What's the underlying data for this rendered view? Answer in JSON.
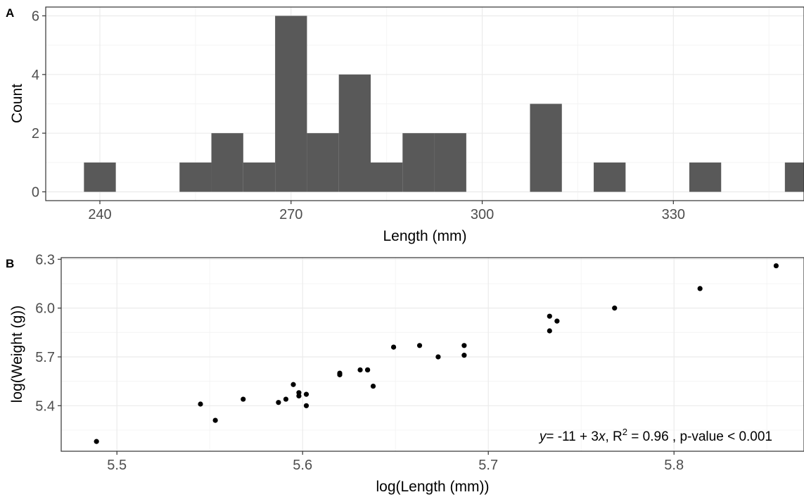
{
  "chart_data": [
    {
      "panel": "A",
      "type": "bar",
      "subtype": "histogram",
      "xlabel": "Length (mm)",
      "ylabel": "Count",
      "xticks": [
        240,
        270,
        300,
        330
      ],
      "yticks": [
        0,
        2,
        4,
        6
      ],
      "xlim": [
        231.5,
        350.5
      ],
      "ylim": [
        -0.3,
        6.3
      ],
      "bin_width": 5,
      "bins": [
        {
          "center": 240,
          "count": 1
        },
        {
          "center": 245,
          "count": 0
        },
        {
          "center": 250,
          "count": 0
        },
        {
          "center": 255,
          "count": 1
        },
        {
          "center": 260,
          "count": 2
        },
        {
          "center": 265,
          "count": 1
        },
        {
          "center": 270,
          "count": 6
        },
        {
          "center": 275,
          "count": 2
        },
        {
          "center": 280,
          "count": 4
        },
        {
          "center": 285,
          "count": 1
        },
        {
          "center": 290,
          "count": 2
        },
        {
          "center": 295,
          "count": 2
        },
        {
          "center": 300,
          "count": 0
        },
        {
          "center": 305,
          "count": 0
        },
        {
          "center": 310,
          "count": 3
        },
        {
          "center": 315,
          "count": 0
        },
        {
          "center": 320,
          "count": 1
        },
        {
          "center": 325,
          "count": 0
        },
        {
          "center": 330,
          "count": 0
        },
        {
          "center": 335,
          "count": 1
        },
        {
          "center": 340,
          "count": 0
        },
        {
          "center": 345,
          "count": 0
        },
        {
          "center": 350,
          "count": 1
        }
      ],
      "bar_color": "#595959",
      "grid": true
    },
    {
      "panel": "B",
      "type": "scatter",
      "xlabel": "log(Length (mm))",
      "ylabel": "log(Weight (g))",
      "xticks": [
        "5.5",
        "5.6",
        "5.7",
        "5.8"
      ],
      "yticks": [
        "5.4",
        "5.7",
        "6.0",
        "6.3"
      ],
      "xlim": [
        5.47,
        5.87
      ],
      "ylim": [
        5.12,
        6.31
      ],
      "points": [
        [
          5.489,
          5.18
        ],
        [
          5.545,
          5.41
        ],
        [
          5.553,
          5.31
        ],
        [
          5.568,
          5.44
        ],
        [
          5.587,
          5.42
        ],
        [
          5.591,
          5.44
        ],
        [
          5.595,
          5.53
        ],
        [
          5.598,
          5.48
        ],
        [
          5.598,
          5.46
        ],
        [
          5.602,
          5.47
        ],
        [
          5.602,
          5.4
        ],
        [
          5.62,
          5.6
        ],
        [
          5.62,
          5.59
        ],
        [
          5.631,
          5.62
        ],
        [
          5.635,
          5.62
        ],
        [
          5.635,
          5.62
        ],
        [
          5.638,
          5.52
        ],
        [
          5.649,
          5.76
        ],
        [
          5.663,
          5.77
        ],
        [
          5.673,
          5.7
        ],
        [
          5.687,
          5.77
        ],
        [
          5.687,
          5.71
        ],
        [
          5.733,
          5.95
        ],
        [
          5.733,
          5.86
        ],
        [
          5.737,
          5.92
        ],
        [
          5.768,
          6.0
        ],
        [
          5.814,
          6.12
        ],
        [
          5.855,
          6.26
        ]
      ],
      "point_color": "#000000",
      "grid": true,
      "annotation": {
        "y": "y",
        "eq": "= -11 + 3",
        "x": "x",
        "r2": ", R",
        "sup": "2",
        "rest": " = 0.96 , p-value < 0.001"
      }
    }
  ],
  "panel_tags": [
    "A",
    "B"
  ]
}
